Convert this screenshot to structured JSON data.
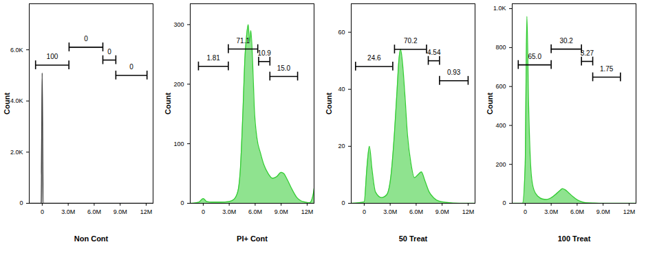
{
  "chart_data": [
    {
      "type": "area",
      "x_label": "Non Cont",
      "y_label": "Count",
      "color": "#444444",
      "xlim": [
        -1500000,
        12800000
      ],
      "ylim": [
        0,
        7800
      ],
      "xticks": [
        0,
        {
          "value": 3000000,
          "label": "3.0M"
        },
        {
          "value": 6000000,
          "label": "6.0M"
        },
        {
          "value": 9000000,
          "label": "9.0M"
        },
        {
          "value": 12000000,
          "label": "12M"
        }
      ],
      "yticks": [
        0,
        {
          "value": 2000,
          "label": "2.0K"
        },
        {
          "value": 4000,
          "label": "4.0K"
        },
        {
          "value": 6000,
          "label": "6.0K"
        }
      ],
      "x": [
        -1500000,
        -120000,
        0,
        120000,
        12800000
      ],
      "values": [
        0,
        0,
        5100,
        0,
        0
      ],
      "gates": [
        {
          "x_range": [
            -770000,
            3080000
          ],
          "y": 5400,
          "value": 100
        },
        {
          "x_range": [
            3100000,
            7000000
          ],
          "y": 6100,
          "value": 0
        },
        {
          "x_range": [
            7000000,
            8500000
          ],
          "y": 5600,
          "value": 0
        },
        {
          "x_range": [
            8500000,
            12100000
          ],
          "y": 5000,
          "value": 0
        }
      ]
    },
    {
      "type": "area",
      "x_label": "PI+ Cont",
      "y_label": "Count",
      "color": "#33cc33",
      "xlim": [
        -1500000,
        12800000
      ],
      "ylim": [
        0,
        335
      ],
      "xticks": [
        0,
        {
          "value": 3000000,
          "label": "3.0M"
        },
        {
          "value": 6000000,
          "label": "6.0M"
        },
        {
          "value": 9000000,
          "label": "9.0M"
        },
        {
          "value": 12000000,
          "label": "12M"
        }
      ],
      "yticks": [
        0,
        100,
        200,
        300
      ],
      "x": [
        -1500000,
        -500000,
        0,
        400000,
        1000000,
        2000000,
        3000000,
        3500000,
        4000000,
        4300000,
        4600000,
        4800000,
        5000000,
        5200000,
        5350000,
        5500000,
        5700000,
        5900000,
        6200000,
        6600000,
        7000000,
        7500000,
        8000000,
        8500000,
        9000000,
        9300000,
        9700000,
        10200000,
        10800000,
        11300000,
        11800000,
        12300000,
        12700000,
        12800000
      ],
      "values": [
        0,
        2,
        8,
        3,
        2,
        2,
        3,
        6,
        20,
        60,
        160,
        240,
        280,
        300,
        270,
        290,
        240,
        160,
        110,
        85,
        65,
        50,
        42,
        45,
        52,
        50,
        40,
        25,
        10,
        4,
        2,
        1,
        15,
        25
      ],
      "gates": [
        {
          "x_range": [
            -550000,
            2900000
          ],
          "y": 230,
          "value": 1.81
        },
        {
          "x_range": [
            2900000,
            6300000
          ],
          "y": 259,
          "value": 71.1
        },
        {
          "x_range": [
            6400000,
            7700000
          ],
          "y": 238,
          "value": 10.9
        },
        {
          "x_range": [
            7700000,
            10900000
          ],
          "y": 213,
          "value": 15.0,
          "label": "15.0"
        }
      ]
    },
    {
      "type": "area",
      "x_label": "50 Treat",
      "y_label": "Count",
      "color": "#33cc33",
      "xlim": [
        -1500000,
        12800000
      ],
      "ylim": [
        0,
        70
      ],
      "xticks": [
        0,
        {
          "value": 3000000,
          "label": "3.0M"
        },
        {
          "value": 6000000,
          "label": "6.0M"
        },
        {
          "value": 9000000,
          "label": "9.0M"
        },
        {
          "value": 12000000,
          "label": "12M"
        }
      ],
      "yticks": [
        0,
        20,
        40,
        60
      ],
      "x": [
        -1500000,
        0,
        300000,
        600000,
        900000,
        1300000,
        2000000,
        2600000,
        3100000,
        3500000,
        3800000,
        4000000,
        4200000,
        4400000,
        4700000,
        5000000,
        5400000,
        5800000,
        6200000,
        6600000,
        7000000,
        7500000,
        8000000,
        8600000,
        9500000,
        11000000,
        12800000
      ],
      "values": [
        0,
        0.5,
        12,
        20,
        12,
        4,
        2,
        3,
        10,
        25,
        40,
        50,
        54,
        50,
        38,
        24,
        14,
        9,
        10,
        11,
        8,
        4,
        2,
        0.8,
        0.3,
        0,
        0
      ],
      "gates": [
        {
          "x_range": [
            -1000000,
            3300000
          ],
          "y": 48,
          "value": 24.6
        },
        {
          "x_range": [
            3500000,
            7200000
          ],
          "y": 54,
          "value": 70.2
        },
        {
          "x_range": [
            7400000,
            8700000
          ],
          "y": 50,
          "value": 4.54
        },
        {
          "x_range": [
            8700000,
            12000000
          ],
          "y": 43,
          "value": 0.93
        }
      ]
    },
    {
      "type": "area",
      "x_label": "100 Treat",
      "y_label": "Count",
      "color": "#33cc33",
      "xlim": [
        -1500000,
        12800000
      ],
      "ylim": [
        0,
        1025
      ],
      "xticks": [
        0,
        {
          "value": 3000000,
          "label": "3.0M"
        },
        {
          "value": 6000000,
          "label": "6.0M"
        },
        {
          "value": 9000000,
          "label": "9.0M"
        },
        {
          "value": 12000000,
          "label": "12M"
        }
      ],
      "yticks": [
        0,
        200,
        400,
        600,
        800,
        {
          "value": 1000,
          "label": "1.0K"
        }
      ],
      "x": [
        -1500000,
        -300000,
        0,
        200000,
        400000,
        700000,
        1000000,
        1500000,
        2000000,
        2500000,
        3000000,
        3500000,
        4000000,
        4300000,
        4600000,
        5000000,
        5500000,
        6000000,
        6500000,
        7000000,
        8000000,
        9000000,
        12800000
      ],
      "values": [
        0,
        0,
        200,
        960,
        500,
        150,
        70,
        35,
        22,
        20,
        28,
        45,
        65,
        75,
        70,
        55,
        35,
        18,
        8,
        3,
        1,
        0,
        0
      ],
      "gates": [
        {
          "x_range": [
            -800000,
            3000000
          ],
          "y": 711,
          "value": 65.0,
          "label": "65.0"
        },
        {
          "x_range": [
            3000000,
            6500000
          ],
          "y": 792,
          "value": 30.2
        },
        {
          "x_range": [
            6500000,
            7800000
          ],
          "y": 729,
          "value": 3.27
        },
        {
          "x_range": [
            7800000,
            11000000
          ],
          "y": 648,
          "value": 1.75
        }
      ]
    }
  ]
}
